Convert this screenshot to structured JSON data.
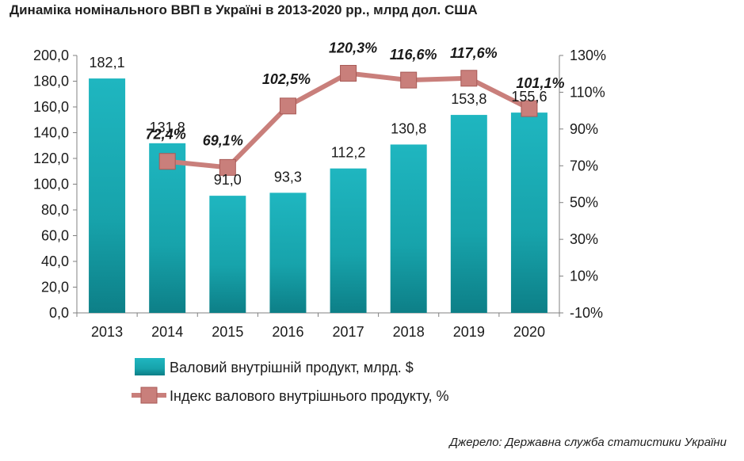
{
  "title": "Динаміка номінального ВВП в Україні в 2013-2020 рр., млрд дол. США",
  "source": "Джерело: Державна служба статистики України",
  "chart_data": {
    "type": "bar",
    "categories": [
      "2013",
      "2014",
      "2015",
      "2016",
      "2017",
      "2018",
      "2019",
      "2020"
    ],
    "series": [
      {
        "name": "Валовий внутрішній продукт, млрд. $",
        "type": "bar",
        "axis": "left",
        "values": [
          182.1,
          131.8,
          91.0,
          93.3,
          112.2,
          130.8,
          153.8,
          155.6
        ],
        "labels": [
          "182,1",
          "131,8",
          "91,0",
          "93,3",
          "112,2",
          "130,8",
          "153,8",
          "155,6"
        ],
        "color": "#1aa3ad"
      },
      {
        "name": "Індекс валового внутрішнього продукту, %",
        "type": "line",
        "axis": "right",
        "x": [
          "2014",
          "2015",
          "2016",
          "2017",
          "2018",
          "2019",
          "2020"
        ],
        "values": [
          72.4,
          69.1,
          102.5,
          120.3,
          116.6,
          117.6,
          101.1
        ],
        "labels": [
          "72,4%",
          "69,1%",
          "102,5%",
          "120,3%",
          "116,6%",
          "117,6%",
          "101,1%"
        ],
        "color": "#c97f7b"
      }
    ],
    "y_left": {
      "ylim": [
        0,
        200
      ],
      "ticks": [
        0,
        20,
        40,
        60,
        80,
        100,
        120,
        140,
        160,
        180,
        200
      ],
      "tick_labels": [
        "0,0",
        "20,0",
        "40,0",
        "60,0",
        "80,0",
        "100,0",
        "120,0",
        "140,0",
        "160,0",
        "180,0",
        "200,0"
      ]
    },
    "y_right": {
      "ylim": [
        -10,
        130
      ],
      "ticks": [
        -10,
        10,
        30,
        50,
        70,
        90,
        110,
        130
      ],
      "tick_labels": [
        "-10%",
        "10%",
        "30%",
        "50%",
        "70%",
        "90%",
        "110%",
        "130%"
      ]
    },
    "grid": false,
    "legend": "bottom"
  }
}
